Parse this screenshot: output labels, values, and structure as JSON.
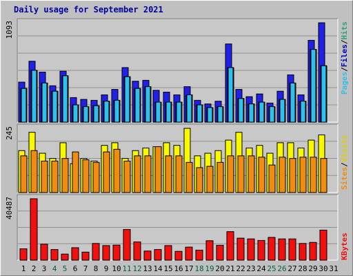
{
  "title": "Daily usage for September 2021",
  "colors": {
    "background": "#c0c0c0",
    "plot_bg": "#c8c8c8",
    "hits": "#2020e8",
    "files": "#00a0e8",
    "pages": "#30c0f0",
    "visits": "#f8f800",
    "sites": "#f08c10",
    "kbytes": "#f01010",
    "weekday_label": "#000000",
    "weekend_label": "#006040"
  },
  "legend": {
    "top": [
      {
        "text": "Pages",
        "color": "#30c0f0"
      },
      {
        "text": "/",
        "color": "#000000"
      },
      {
        "text": "Files",
        "color": "#0000c0"
      },
      {
        "text": "/",
        "color": "#000000"
      },
      {
        "text": "Hits",
        "color": "#30a080"
      }
    ],
    "middle": [
      {
        "text": "Sites",
        "color": "#f08c10"
      },
      {
        "text": "/",
        "color": "#000000"
      },
      {
        "text": "Visits",
        "color": "#e0d000"
      }
    ],
    "bottom": [
      {
        "text": "KBytes",
        "color": "#f01010"
      }
    ]
  },
  "chart_data": {
    "type": "bar",
    "title": "Daily usage for September 2021",
    "categories": [
      "1",
      "2",
      "3",
      "4",
      "5",
      "6",
      "7",
      "8",
      "9",
      "10",
      "11",
      "12",
      "13",
      "14",
      "15",
      "16",
      "17",
      "18",
      "19",
      "20",
      "21",
      "22",
      "23",
      "24",
      "25",
      "26",
      "27",
      "28",
      "29",
      "30",
      "31"
    ],
    "weekend_days": [
      "4",
      "5",
      "11",
      "12",
      "18",
      "19",
      "25",
      "26"
    ],
    "panels": [
      {
        "name": "hits-files-pages",
        "ymax": 1093,
        "ymax_label": "1093",
        "series": [
          {
            "name": "Hits",
            "values": [
              440,
              670,
              550,
              400,
              560,
              270,
              250,
              240,
              300,
              360,
              600,
              450,
              460,
              350,
              330,
              300,
              390,
              240,
              200,
              230,
              860,
              360,
              280,
              310,
              210,
              340,
              520,
              300,
              900,
              1093,
              null
            ]
          },
          {
            "name": "Files",
            "values": [
              370,
              570,
              430,
              340,
              510,
              190,
              170,
              180,
              230,
              240,
              500,
              370,
              390,
              220,
              220,
              220,
              300,
              190,
              160,
              170,
              600,
              260,
              200,
              220,
              170,
              250,
              430,
              230,
              800,
              620,
              null
            ]
          },
          {
            "name": "Pages",
            "values": [
              370,
              570,
              430,
              340,
              510,
              190,
              170,
              180,
              230,
              240,
              500,
              370,
              390,
              220,
              220,
              220,
              300,
              190,
              160,
              170,
              600,
              260,
              200,
              220,
              170,
              250,
              430,
              230,
              800,
              620,
              null
            ]
          }
        ]
      },
      {
        "name": "visits-sites",
        "ymax": 245,
        "ymax_label": "245",
        "series": [
          {
            "name": "Visits",
            "values": [
              160,
              230,
              150,
              130,
              190,
              110,
              130,
              120,
              180,
              190,
              130,
              160,
              170,
              175,
              190,
              180,
              245,
              140,
              150,
              160,
              200,
              230,
              170,
              180,
              150,
              190,
              190,
              170,
              200,
              220,
              null
            ]
          },
          {
            "name": "Sites",
            "values": [
              140,
              160,
              120,
              120,
              130,
              155,
              125,
              115,
              155,
              165,
              120,
              140,
              140,
              175,
              140,
              140,
              115,
              95,
              100,
              115,
              140,
              140,
              140,
              135,
              105,
              135,
              130,
              135,
              135,
              130,
              null
            ]
          }
        ]
      },
      {
        "name": "kbytes",
        "ymax": 40487,
        "ymax_label": "40487",
        "series": [
          {
            "name": "KBytes",
            "values": [
              7500,
              40487,
              10500,
              7000,
              4000,
              8200,
              5300,
              11000,
              9600,
              9900,
              20200,
              12000,
              6000,
              7000,
              9600,
              5800,
              8600,
              6600,
              12800,
              9800,
              18800,
              14500,
              14000,
              13000,
              15000,
              14000,
              14000,
              11000,
              11700,
              19800,
              null
            ]
          }
        ]
      }
    ]
  }
}
